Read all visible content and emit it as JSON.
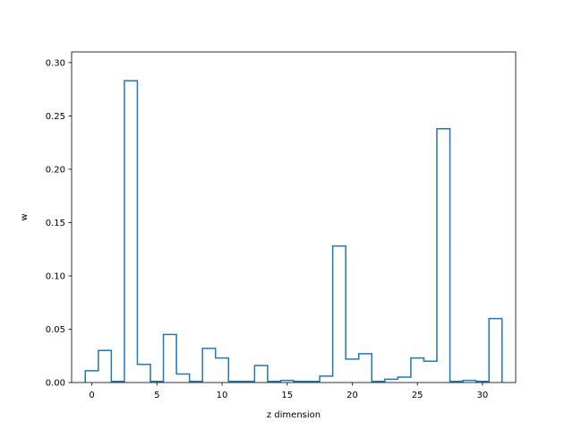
{
  "chart_data": {
    "type": "line",
    "style": "step-histogram",
    "xlabel": "z dimension",
    "ylabel": "w",
    "xlim": [
      -1.55,
      32.55
    ],
    "ylim": [
      0.0,
      0.31
    ],
    "xticks": [
      0,
      5,
      10,
      15,
      20,
      25,
      30
    ],
    "yticks": [
      0.0,
      0.05,
      0.1,
      0.15,
      0.2,
      0.25,
      0.3
    ],
    "grid": false,
    "series_color": "#1f77b4",
    "x": [
      0,
      1,
      2,
      3,
      4,
      5,
      6,
      7,
      8,
      9,
      10,
      11,
      12,
      13,
      14,
      15,
      16,
      17,
      18,
      19,
      20,
      21,
      22,
      23,
      24,
      25,
      26,
      27,
      28,
      29,
      30,
      31
    ],
    "values": [
      0.011,
      0.03,
      0.001,
      0.283,
      0.017,
      0.001,
      0.045,
      0.008,
      0.001,
      0.032,
      0.023,
      0.001,
      0.001,
      0.016,
      0.001,
      0.002,
      0.001,
      0.001,
      0.006,
      0.128,
      0.022,
      0.027,
      0.001,
      0.003,
      0.005,
      0.023,
      0.02,
      0.238,
      0.001,
      0.002,
      0.001,
      0.06
    ]
  }
}
